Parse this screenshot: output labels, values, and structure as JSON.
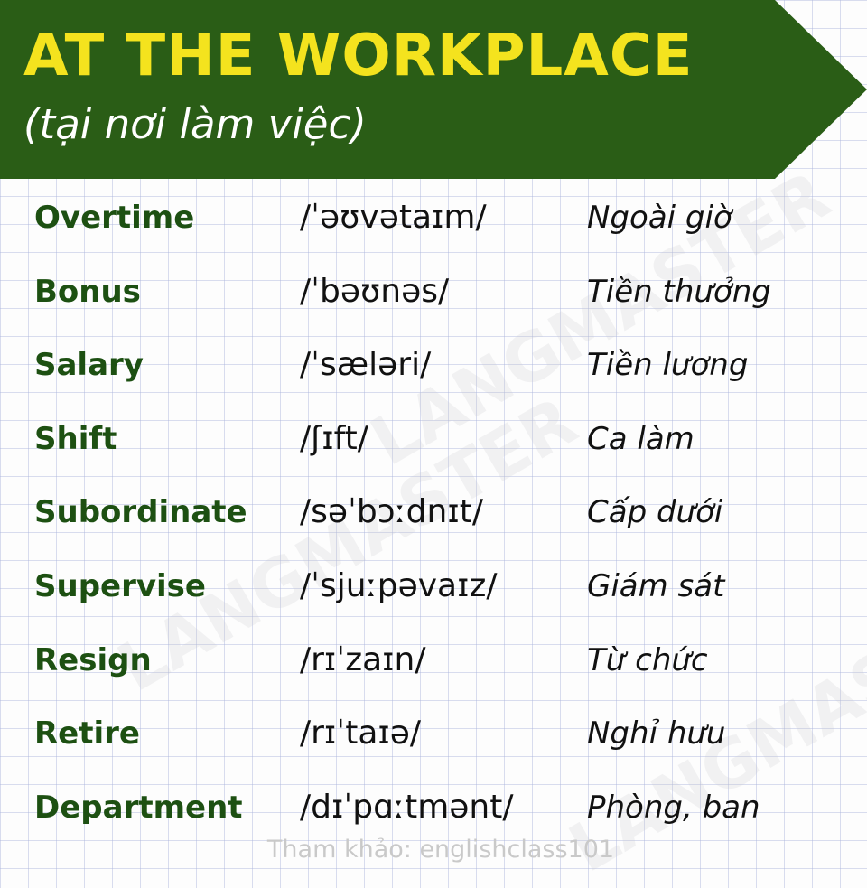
{
  "header": {
    "title": "AT THE WORKPLACE",
    "subtitle": "(tại nơi làm việc)"
  },
  "watermark": "LANGMASTER",
  "colors": {
    "banner_green": "#2a5d16",
    "title_yellow": "#f4e31e",
    "word_green": "#1d5012"
  },
  "vocabulary": [
    {
      "word": "Overtime",
      "ipa": "/ˈəʊvətaɪm/",
      "meaning": "Ngoài giờ"
    },
    {
      "word": "Bonus",
      "ipa": "/ˈbəʊnəs/",
      "meaning": "Tiền thưởng"
    },
    {
      "word": "Salary",
      "ipa": "/ˈsæləri/",
      "meaning": "Tiền lương"
    },
    {
      "word": "Shift",
      "ipa": "/ʃɪft/",
      "meaning": "Ca làm"
    },
    {
      "word": "Subordinate",
      "ipa": "/səˈbɔːdnɪt/",
      "meaning": "Cấp dưới"
    },
    {
      "word": "Supervise",
      "ipa": "/ˈsjuːpəvaɪz/",
      "meaning": "Giám sát"
    },
    {
      "word": "Resign",
      "ipa": "/rɪˈzaɪn/",
      "meaning": "Từ chức"
    },
    {
      "word": "Retire",
      "ipa": "/rɪˈtaɪə/",
      "meaning": "Nghỉ hưu"
    },
    {
      "word": "Department",
      "ipa": "/dɪˈpɑːtmənt/",
      "meaning": "Phòng, ban"
    }
  ],
  "footer": {
    "source": "Tham khảo: englishclass101"
  }
}
